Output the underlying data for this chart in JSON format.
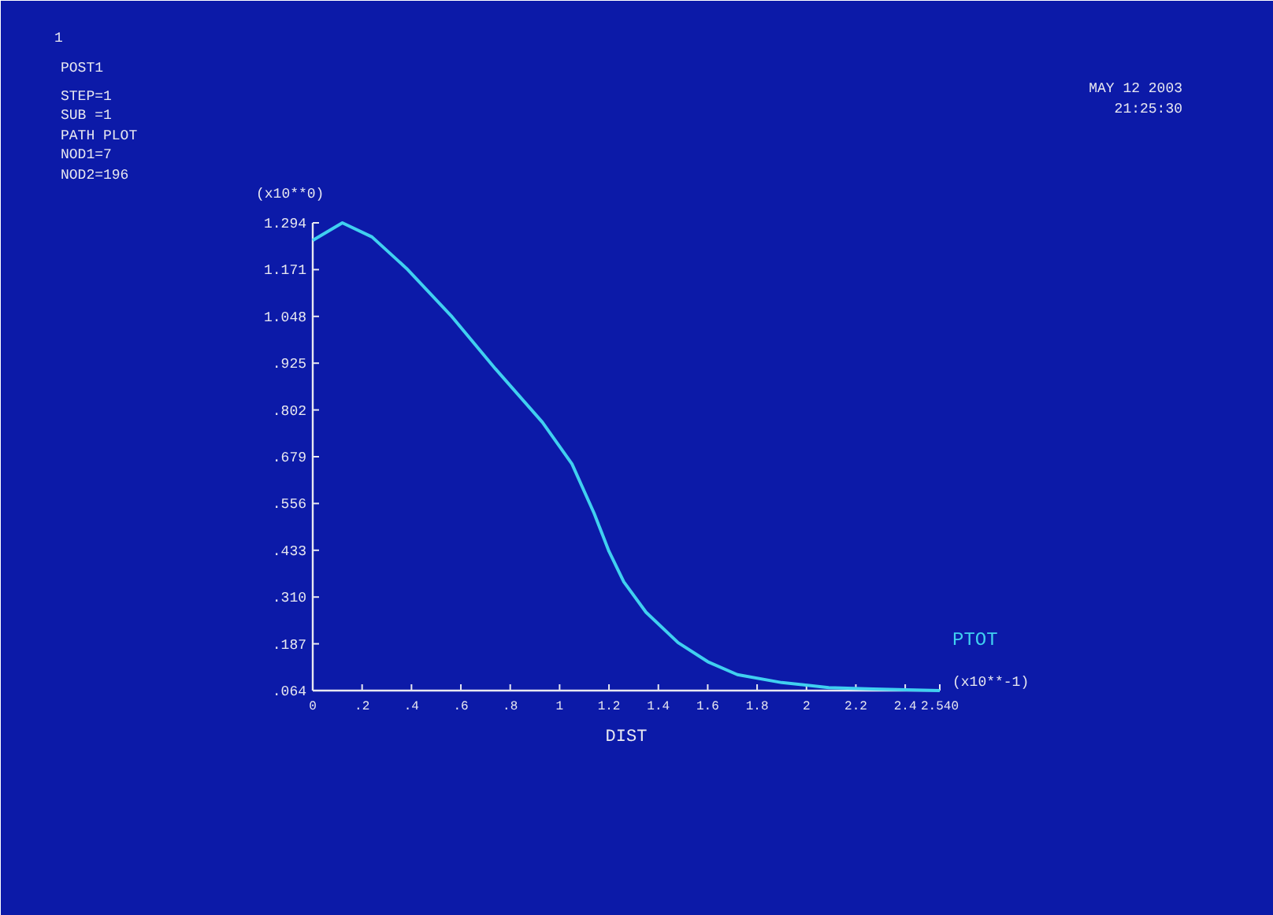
{
  "chart_data": {
    "type": "line",
    "xlabel": "DIST",
    "annotations": [
      "1",
      "POST1",
      "STEP=1",
      "SUB =1",
      "PATH PLOT",
      "NOD1=7",
      "NOD2=196",
      "MAY 12 2003",
      "21:25:30",
      "(x10**0)",
      "(x10**-1)"
    ],
    "x": [
      0,
      0.12,
      0.24,
      0.38,
      0.56,
      0.74,
      0.93,
      1.05,
      1.14,
      1.2,
      1.26,
      1.35,
      1.48,
      1.6,
      1.72,
      1.9,
      2.09,
      2.27,
      2.54
    ],
    "series": [
      {
        "name": "PTOT",
        "color": "#40d0f0",
        "values": [
          1.248,
          1.294,
          1.257,
          1.174,
          1.05,
          0.91,
          0.77,
          0.66,
          0.53,
          0.43,
          0.35,
          0.27,
          0.19,
          0.14,
          0.106,
          0.085,
          0.072,
          0.068,
          0.064
        ]
      }
    ],
    "xlim": [
      0,
      2.54
    ],
    "xticks": [
      0,
      {
        "value": 0.2,
        "label": ".2"
      },
      {
        "value": 0.4,
        "label": ".4"
      },
      {
        "value": 0.6,
        "label": ".6"
      },
      {
        "value": 0.8,
        "label": ".8"
      },
      1,
      1.2,
      1.4,
      1.6,
      1.8,
      2,
      2.2,
      2.4,
      {
        "value": 2.54,
        "label": "2.540"
      }
    ],
    "ylim": [
      0.064,
      1.294
    ],
    "yticks": [
      {
        "value": 0.064,
        "label": ".064"
      },
      {
        "value": 0.187,
        "label": ".187"
      },
      {
        "value": 0.31,
        "label": ".310"
      },
      {
        "value": 0.433,
        "label": ".433"
      },
      {
        "value": 0.556,
        "label": ".556"
      },
      {
        "value": 0.679,
        "label": ".679"
      },
      {
        "value": 0.802,
        "label": ".802"
      },
      {
        "value": 0.925,
        "label": ".925"
      },
      1.048,
      1.171,
      1.294
    ],
    "grid": false,
    "legend": false,
    "marker": "none",
    "line_style": "solid"
  }
}
